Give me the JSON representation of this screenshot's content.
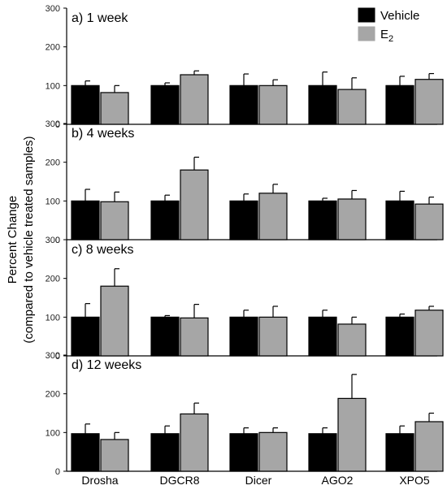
{
  "chart_data": {
    "type": "bar",
    "ylabel_line1": "Percent Change",
    "ylabel_line2": "(compared to vehicle treated samples)",
    "ylim": [
      0,
      300
    ],
    "yticks": [
      0,
      100,
      200,
      300
    ],
    "categories": [
      "Drosha",
      "DGCR8",
      "Dicer",
      "AGO2",
      "XPO5"
    ],
    "legend": {
      "placement": "top-right",
      "items": [
        {
          "label": "Vehicle",
          "color": "#000000"
        },
        {
          "label": "E",
          "subscript": "2",
          "color": "#a6a6a6"
        }
      ]
    },
    "panels": [
      {
        "title": "a) 1 week",
        "series": [
          {
            "name": "Vehicle",
            "color": "#000000",
            "values": [
              100,
              100,
              100,
              100,
              100
            ],
            "errors": [
              12,
              7,
              30,
              35,
              24
            ]
          },
          {
            "name": "E2",
            "color": "#a6a6a6",
            "values": [
              82,
              128,
              100,
              90,
              116
            ],
            "errors": [
              18,
              10,
              15,
              30,
              15
            ]
          }
        ]
      },
      {
        "title": "b) 4 weeks",
        "series": [
          {
            "name": "Vehicle",
            "color": "#000000",
            "values": [
              100,
              100,
              100,
              100,
              100
            ],
            "errors": [
              30,
              15,
              18,
              7,
              25
            ]
          },
          {
            "name": "E2",
            "color": "#a6a6a6",
            "values": [
              98,
              180,
              120,
              105,
              92
            ],
            "errors": [
              25,
              33,
              23,
              22,
              18
            ]
          }
        ]
      },
      {
        "title": "c) 8 weeks",
        "series": [
          {
            "name": "Vehicle",
            "color": "#000000",
            "values": [
              100,
              100,
              100,
              100,
              100
            ],
            "errors": [
              35,
              4,
              18,
              18,
              8
            ]
          },
          {
            "name": "E2",
            "color": "#a6a6a6",
            "values": [
              180,
              98,
              100,
              82,
              118
            ],
            "errors": [
              45,
              35,
              28,
              18,
              10
            ]
          }
        ]
      },
      {
        "title": "d) 12 weeks",
        "series": [
          {
            "name": "Vehicle",
            "color": "#000000",
            "values": [
              97,
              97,
              97,
              97,
              97
            ],
            "errors": [
              25,
              20,
              15,
              15,
              20
            ]
          },
          {
            "name": "E2",
            "color": "#a6a6a6",
            "values": [
              82,
              148,
              100,
              188,
              128
            ],
            "errors": [
              18,
              28,
              12,
              62,
              22
            ]
          }
        ]
      }
    ]
  }
}
